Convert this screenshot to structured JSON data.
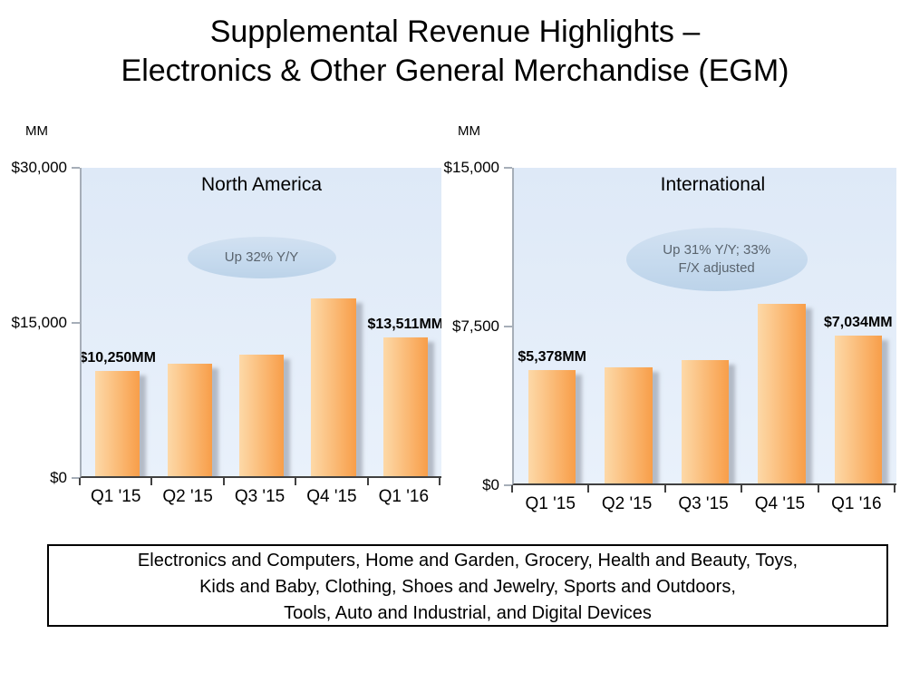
{
  "title": {
    "line1": "Supplemental Revenue Highlights –",
    "line2": "Electronics & Other General Merchandise (EGM)"
  },
  "footer": {
    "line1": "Electronics and Computers, Home and Garden, Grocery, Health and Beauty, Toys,",
    "line2": "Kids and Baby, Clothing, Shoes and Jewelry, Sports and Outdoors,",
    "line3": "Tools, Auto and Industrial, and Digital Devices"
  },
  "colors": {
    "bar_light": "#FDD9A8",
    "bar_dark": "#F89E49",
    "bar_shadow": "rgba(128,134,146,0.5)",
    "plot_bg_top": "#DEE9F7",
    "plot_bg_bottom": "#E9F1FB",
    "callout_bg": "#C6DAEE",
    "callout_text": "#5A646E",
    "axis_y": "#A6AEB8",
    "axis_x": "#404040"
  },
  "chart_data": [
    {
      "type": "bar",
      "title": "North America",
      "units": "MM",
      "categories": [
        "Q1 '15",
        "Q2 '15",
        "Q3 '15",
        "Q4 '15",
        "Q1 '16"
      ],
      "values": [
        10250,
        10937,
        11796,
        17333,
        13511
      ],
      "ylim": [
        0,
        30000
      ],
      "yticks": [
        "$30,000",
        "$15,000",
        "$0"
      ],
      "grid": false,
      "legend": false,
      "bar_labels": [
        {
          "index": 0,
          "text": "$10,250MM"
        },
        {
          "index": 4,
          "text": "$13,511MM"
        }
      ],
      "callout": {
        "line1": "Up 32% Y/Y",
        "line2": ""
      }
    },
    {
      "type": "bar",
      "title": "International",
      "units": "MM",
      "categories": [
        "Q1 '15",
        "Q2 '15",
        "Q3 '15",
        "Q4 '15",
        "Q1 '16"
      ],
      "values": [
        5378,
        5503,
        5843,
        8528,
        7034
      ],
      "ylim": [
        0,
        15000
      ],
      "yticks": [
        "$15,000",
        "$7,500",
        "$0"
      ],
      "grid": false,
      "legend": false,
      "bar_labels": [
        {
          "index": 0,
          "text": "$5,378MM"
        },
        {
          "index": 4,
          "text": "$7,034MM"
        }
      ],
      "callout": {
        "line1": "Up 31% Y/Y; 33%",
        "line2": "F/X adjusted"
      }
    }
  ]
}
